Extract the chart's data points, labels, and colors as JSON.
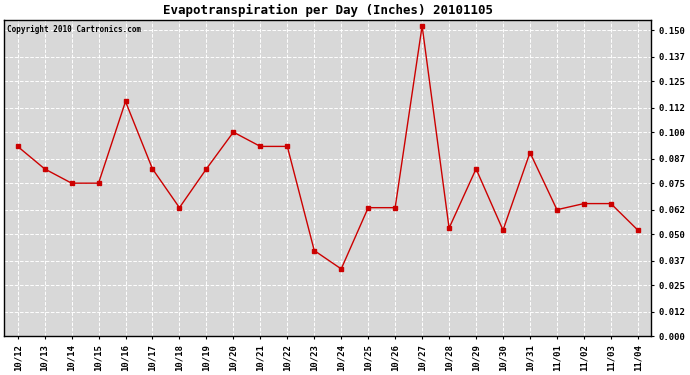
{
  "title": "Evapotranspiration per Day (Inches) 20101105",
  "copyright": "Copyright 2010 Cartronics.com",
  "x_labels": [
    "10/12",
    "10/13",
    "10/14",
    "10/15",
    "10/16",
    "10/17",
    "10/18",
    "10/19",
    "10/20",
    "10/21",
    "10/22",
    "10/23",
    "10/24",
    "10/25",
    "10/26",
    "10/27",
    "10/28",
    "10/29",
    "10/30",
    "10/31",
    "11/01",
    "11/02",
    "11/03",
    "11/04"
  ],
  "y_values": [
    0.093,
    0.082,
    0.075,
    0.075,
    0.115,
    0.082,
    0.063,
    0.082,
    0.1,
    0.093,
    0.093,
    0.042,
    0.033,
    0.063,
    0.063,
    0.152,
    0.053,
    0.082,
    0.052,
    0.09,
    0.062,
    0.065,
    0.065,
    0.052
  ],
  "y_ticks": [
    0.0,
    0.012,
    0.025,
    0.037,
    0.05,
    0.062,
    0.075,
    0.087,
    0.1,
    0.112,
    0.125,
    0.137,
    0.15
  ],
  "y_min": 0.0,
  "y_max": 0.155,
  "line_color": "#cc0000",
  "marker": "s",
  "marker_size": 2.5,
  "bg_color": "#ffffff",
  "plot_bg_color": "#d8d8d8",
  "grid_color": "#ffffff",
  "title_fontsize": 9,
  "tick_fontsize": 6.5,
  "copyright_fontsize": 5.5
}
